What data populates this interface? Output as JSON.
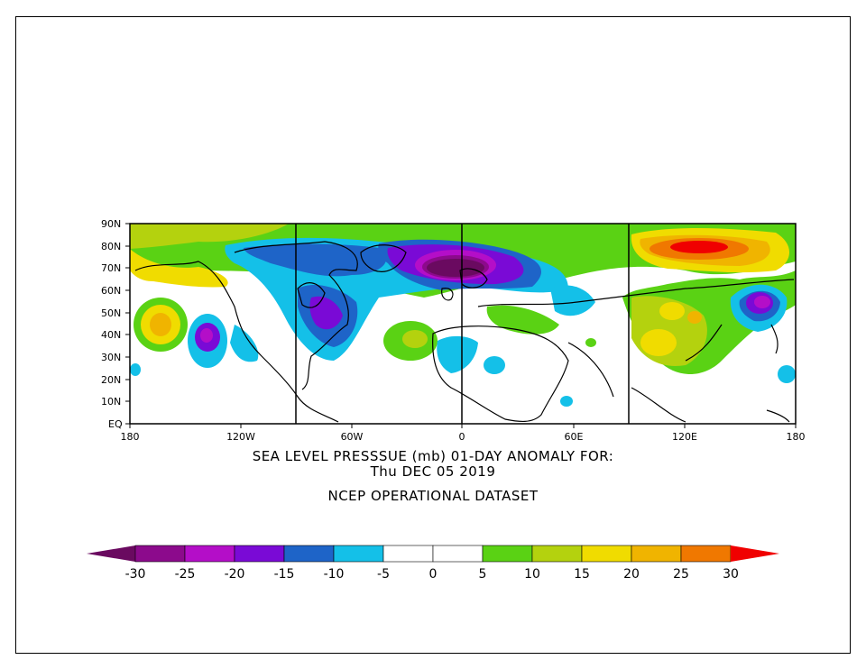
{
  "map": {
    "lat_labels": [
      "90N",
      "80N",
      "70N",
      "60N",
      "50N",
      "40N",
      "30N",
      "20N",
      "10N",
      "EQ"
    ],
    "lon_labels": [
      "180",
      "120W",
      "60W",
      "0",
      "60E",
      "120E",
      "180"
    ],
    "grid_lon_lines": [
      -90,
      0,
      90
    ],
    "colors": {
      "neg30": "#6a0a60",
      "neg25": "#8c0a8c",
      "neg20": "#b40ec8",
      "neg15": "#7a0ad6",
      "neg10": "#1e64c8",
      "neg5": "#14c0e8",
      "pos5": "#5ad214",
      "pos10": "#b4d20e",
      "pos15": "#f0dc00",
      "pos20": "#f0b400",
      "pos25": "#f07800",
      "pos30": "#f00000"
    }
  },
  "title": {
    "line1": "SEA LEVEL PRESSSUE (mb)   01-DAY ANOMALY FOR:",
    "line2": "Thu DEC 05 2019",
    "line3": "NCEP OPERATIONAL DATASET"
  },
  "scale": {
    "labels": [
      "-30",
      "-25",
      "-20",
      "-15",
      "-10",
      "-5",
      "0",
      "5",
      "10",
      "15",
      "20",
      "25",
      "30"
    ],
    "colors": [
      "#6a0a60",
      "#8c0a8c",
      "#b40ec8",
      "#7a0ad6",
      "#1e64c8",
      "#14c0e8",
      "#ffffff",
      "#ffffff",
      "#5ad214",
      "#b4d20e",
      "#f0dc00",
      "#f0b400",
      "#f07800",
      "#f00000"
    ]
  }
}
